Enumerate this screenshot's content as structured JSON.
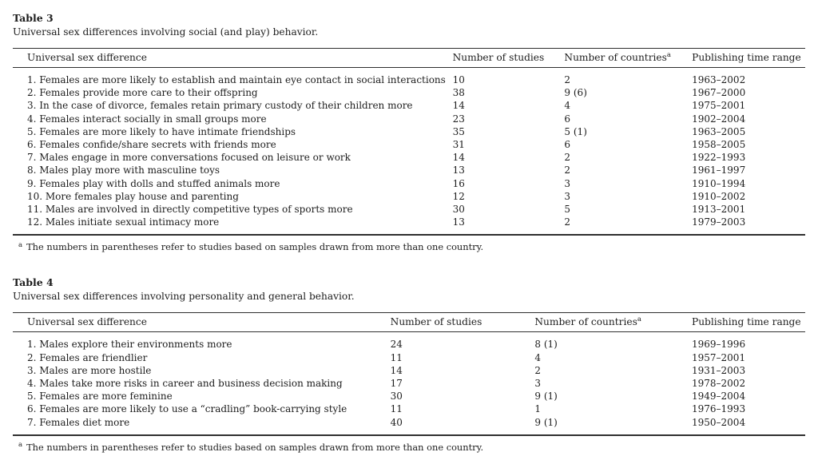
{
  "tables": [
    {
      "label": "Table 3",
      "caption": "Universal sex differences involving social (and play) behavior.",
      "columns": [
        "Universal sex difference",
        "Number of studies",
        "Number of countries",
        "Publishing time range"
      ],
      "countries_superscript": "a",
      "rows": [
        [
          "1. Females are more likely to establish and maintain eye contact in social interactions",
          "10",
          "2",
          "1963–2002"
        ],
        [
          "2. Females provide more care to their offspring",
          "38",
          "9 (6)",
          "1967–2000"
        ],
        [
          "3. In the case of divorce, females retain primary custody of their children more",
          "14",
          "4",
          "1975–2001"
        ],
        [
          "4. Females interact socially in small groups more",
          "23",
          "6",
          "1902–2004"
        ],
        [
          "5. Females are more likely to have intimate friendships",
          "35",
          "5 (1)",
          "1963–2005"
        ],
        [
          "6. Females confide/share secrets with friends more",
          "31",
          "6",
          "1958–2005"
        ],
        [
          "7. Males engage in more conversations focused on leisure or work",
          "14",
          "2",
          "1922–1993"
        ],
        [
          "8. Males play more with masculine toys",
          "13",
          "2",
          "1961–1997"
        ],
        [
          "9. Females play with dolls and stuffed animals more",
          "16",
          "3",
          "1910–1994"
        ],
        [
          "10. More females play house and parenting",
          "12",
          "3",
          "1910–2002"
        ],
        [
          "11. Males are involved in directly competitive types of sports more",
          "30",
          "5",
          "1913–2001"
        ],
        [
          "12. Males initiate sexual intimacy more",
          "13",
          "2",
          "1979–2003"
        ]
      ],
      "footnote_marker": "a",
      "footnote": "The numbers in parentheses refer to studies based on samples drawn from more than one country."
    },
    {
      "label": "Table 4",
      "caption": "Universal sex differences involving personality and general behavior.",
      "columns": [
        "Universal sex difference",
        "Number of studies",
        "Number of countries",
        "Publishing time range"
      ],
      "countries_superscript": "a",
      "rows": [
        [
          "1. Males explore their environments more",
          "24",
          "8 (1)",
          "1969–1996"
        ],
        [
          "2. Females are friendlier",
          "11",
          "4",
          "1957–2001"
        ],
        [
          "3. Males are more hostile",
          "14",
          "2",
          "1931–2003"
        ],
        [
          "4. Males take more risks in career and business decision making",
          "17",
          "3",
          "1978–2002"
        ],
        [
          "5. Females are more feminine",
          "30",
          "9 (1)",
          "1949–2004"
        ],
        [
          "6. Females are more likely to use a “cradling” book-carrying style",
          "11",
          "1",
          "1976–1993"
        ],
        [
          "7. Females diet more",
          "40",
          "9 (1)",
          "1950–2004"
        ]
      ],
      "footnote_marker": "a",
      "footnote": "The numbers in parentheses refer to studies based on samples drawn from more than one country."
    }
  ]
}
